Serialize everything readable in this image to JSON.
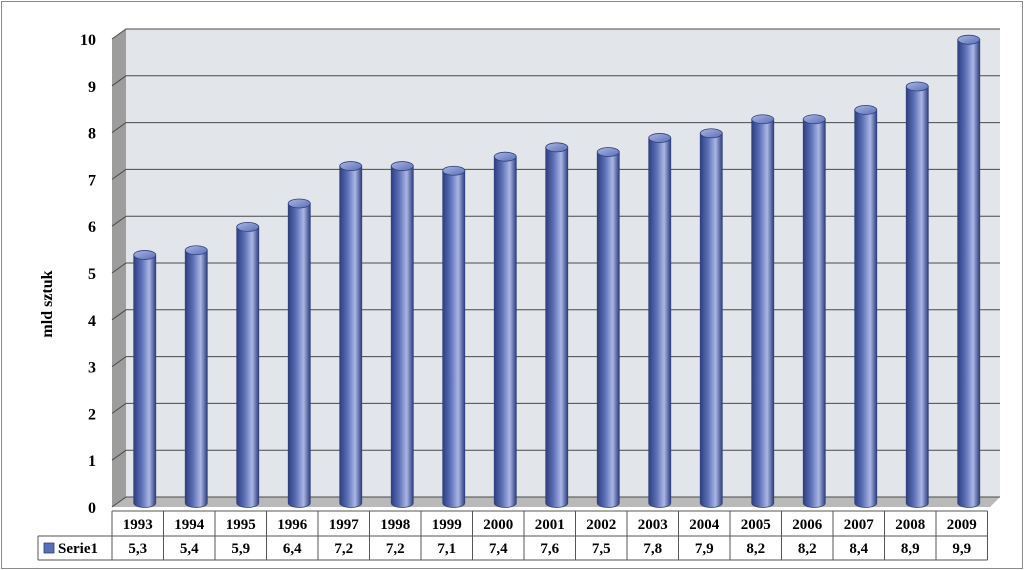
{
  "chart_data": {
    "type": "bar",
    "categories": [
      "1993",
      "1994",
      "1995",
      "1996",
      "1997",
      "1998",
      "1999",
      "2000",
      "2001",
      "2002",
      "2003",
      "2004",
      "2005",
      "2006",
      "2007",
      "2008",
      "2009"
    ],
    "series": [
      {
        "name": "Serie1",
        "values": [
          5.3,
          5.4,
          5.9,
          6.4,
          7.2,
          7.2,
          7.1,
          7.4,
          7.6,
          7.5,
          7.8,
          7.9,
          8.2,
          8.2,
          8.4,
          8.9,
          9.9
        ],
        "labels": [
          "5,3",
          "5,4",
          "5,9",
          "6,4",
          "7,2",
          "7,2",
          "7,1",
          "7,4",
          "7,6",
          "7,5",
          "7,8",
          "7,9",
          "8,2",
          "8,2",
          "8,4",
          "8,9",
          "9,9"
        ]
      }
    ],
    "ylabel": "mld sztuk",
    "ylim": [
      0,
      10
    ],
    "yticks": [
      "0",
      "1",
      "2",
      "3",
      "4",
      "5",
      "6",
      "7",
      "8",
      "9",
      "10"
    ],
    "grid": true,
    "data_table": true,
    "colors": {
      "bar": "#5b6fb6",
      "bar_dark": "#2f3f80",
      "bar_light": "#aab6e4",
      "plot_back": "#e2e5e9",
      "side_wall": "#9d9d9d",
      "floor": "#b9b9b9",
      "grid": "#4a4a4a"
    }
  }
}
